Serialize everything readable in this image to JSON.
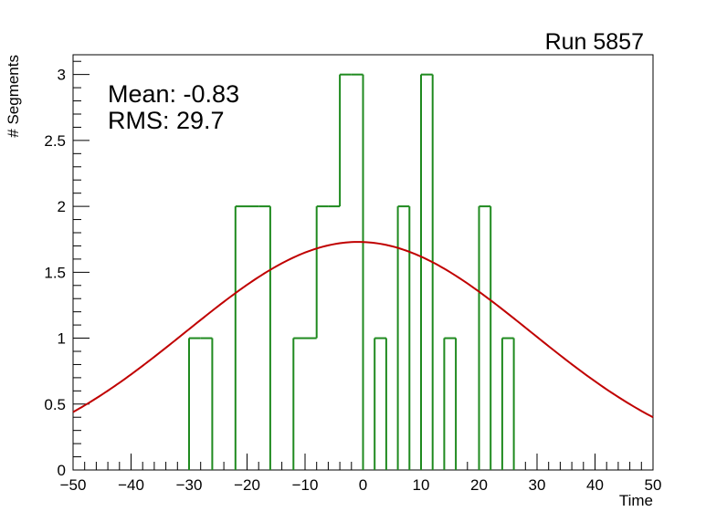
{
  "chart_data": {
    "type": "histogram",
    "title": "Run 5857",
    "xlabel": "Time",
    "ylabel": "# Segments",
    "xlim": [
      -50,
      50
    ],
    "ylim": [
      0,
      3.15
    ],
    "x_ticks": [
      -50,
      -40,
      -30,
      -20,
      -10,
      0,
      10,
      20,
      30,
      40,
      50
    ],
    "y_ticks": [
      0,
      0.5,
      1,
      1.5,
      2,
      2.5,
      3
    ],
    "x_tick_labels": [
      "−50",
      "−40",
      "−30",
      "−20",
      "−10",
      "0",
      "10",
      "20",
      "30",
      "40",
      "50"
    ],
    "y_tick_labels": [
      "0",
      "0.5",
      "1",
      "1.5",
      "2",
      "2.5",
      "3"
    ],
    "bin_width": 2,
    "bin_edges": [
      -50,
      -48,
      -46,
      -44,
      -42,
      -40,
      -38,
      -36,
      -34,
      -32,
      -30,
      -28,
      -26,
      -24,
      -22,
      -20,
      -18,
      -16,
      -14,
      -12,
      -10,
      -8,
      -6,
      -4,
      -2,
      0,
      2,
      4,
      6,
      8,
      10,
      12,
      14,
      16,
      18,
      20,
      22,
      24,
      26,
      28,
      30,
      32,
      34,
      36,
      38,
      40,
      42,
      44,
      46,
      48,
      50
    ],
    "counts": [
      0,
      0,
      0,
      0,
      0,
      0,
      0,
      0,
      0,
      0,
      1,
      1,
      0,
      0,
      2,
      2,
      2,
      0,
      0,
      1,
      1,
      2,
      2,
      3,
      3,
      0,
      1,
      0,
      2,
      0,
      3,
      0,
      1,
      0,
      0,
      2,
      0,
      1,
      0,
      0,
      0,
      0,
      0,
      0,
      0,
      0,
      0,
      0,
      0,
      0
    ],
    "hist_color": "#1f8a1f",
    "fit": {
      "type": "gaussian",
      "amplitude": 1.73,
      "mean": -0.83,
      "sigma": 29.7,
      "color": "#c00000"
    },
    "stats": {
      "mean_label": "Mean: -0.83",
      "rms_label": "RMS:  29.7"
    },
    "grid": false,
    "legend": "none"
  }
}
